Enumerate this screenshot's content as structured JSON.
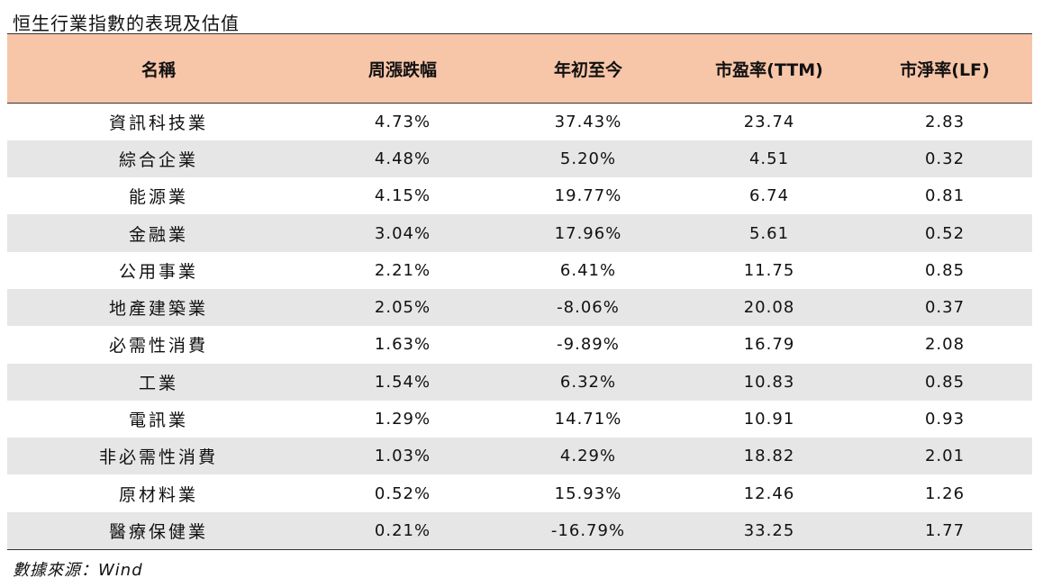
{
  "title": "恒生行業指數的表現及估值",
  "headers": [
    "名稱",
    "周漲跌幅",
    "年初至今",
    "市盈率(TTM)",
    "市淨率(LF)"
  ],
  "rows": [
    {
      "name": "資訊科技業",
      "weekly": "4.73%",
      "ytd": "37.43%",
      "pe": "23.74",
      "pb": "2.83"
    },
    {
      "name": "綜合企業",
      "weekly": "4.48%",
      "ytd": "5.20%",
      "pe": "4.51",
      "pb": "0.32"
    },
    {
      "name": "能源業",
      "weekly": "4.15%",
      "ytd": "19.77%",
      "pe": "6.74",
      "pb": "0.81"
    },
    {
      "name": "金融業",
      "weekly": "3.04%",
      "ytd": "17.96%",
      "pe": "5.61",
      "pb": "0.52"
    },
    {
      "name": "公用事業",
      "weekly": "2.21%",
      "ytd": "6.41%",
      "pe": "11.75",
      "pb": "0.85"
    },
    {
      "name": "地產建築業",
      "weekly": "2.05%",
      "ytd": "-8.06%",
      "pe": "20.08",
      "pb": "0.37"
    },
    {
      "name": "必需性消費",
      "weekly": "1.63%",
      "ytd": "-9.89%",
      "pe": "16.79",
      "pb": "2.08"
    },
    {
      "name": "工業",
      "weekly": "1.54%",
      "ytd": "6.32%",
      "pe": "10.83",
      "pb": "0.85"
    },
    {
      "name": "電訊業",
      "weekly": "1.29%",
      "ytd": "14.71%",
      "pe": "10.91",
      "pb": "0.93"
    },
    {
      "name": "非必需性消費",
      "weekly": "1.03%",
      "ytd": "4.29%",
      "pe": "18.82",
      "pb": "2.01"
    },
    {
      "name": "原材料業",
      "weekly": "0.52%",
      "ytd": "15.93%",
      "pe": "12.46",
      "pb": "1.26"
    },
    {
      "name": "醫療保健業",
      "weekly": "0.21%",
      "ytd": "-16.79%",
      "pe": "33.25",
      "pb": "1.77"
    }
  ],
  "source": "數據來源：Wind"
}
